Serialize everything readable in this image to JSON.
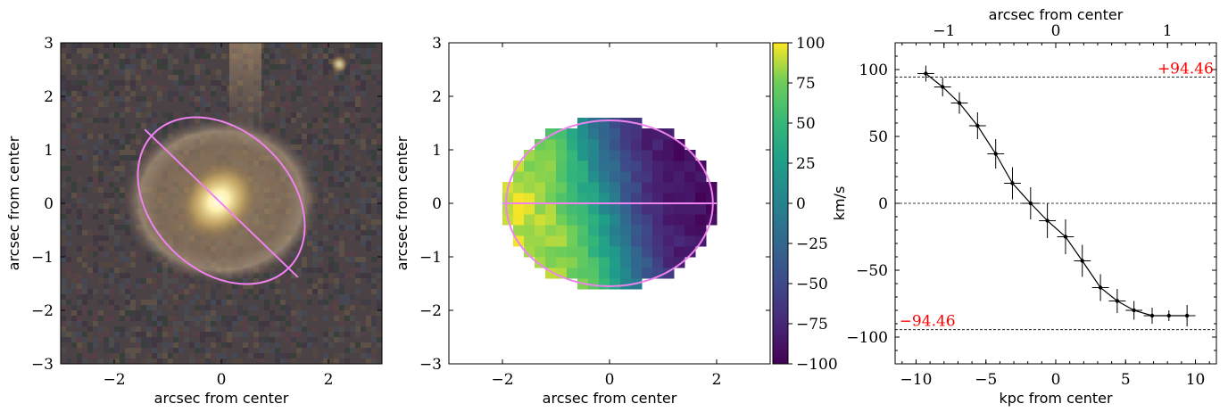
{
  "chart_data": [
    {
      "type": "image",
      "xlabel": "arcsec from center",
      "ylabel": "arcsec from center",
      "xlim": [
        -3,
        3
      ],
      "ylim": [
        -3,
        3
      ],
      "xticks": [
        -2,
        0,
        2
      ],
      "yticks": [
        -3,
        -2,
        -1,
        0,
        1,
        2,
        3
      ],
      "xtick_labels": [
        "−2",
        "0",
        "2"
      ],
      "ytick_labels": [
        "−3",
        "−2",
        "−1",
        "0",
        "1",
        "2",
        "3"
      ],
      "ellipse": {
        "center": [
          0,
          0.05
        ],
        "a": 1.78,
        "b": 1.3,
        "angle_deg": -45,
        "color": "#ee82ee"
      },
      "major_axis_line": {
        "from": [
          -1.43,
          1.38
        ],
        "to": [
          1.43,
          -1.38
        ],
        "color": "#ee82ee"
      }
    },
    {
      "type": "heatmap",
      "xlabel": "arcsec from center",
      "ylabel": "arcsec from center",
      "xlim": [
        -3,
        3
      ],
      "ylim": [
        -3,
        3
      ],
      "xticks": [
        -2,
        0,
        2
      ],
      "yticks": [
        -3,
        -2,
        -1,
        0,
        1,
        2,
        3
      ],
      "xtick_labels": [
        "−2",
        "0",
        "2"
      ],
      "ytick_labels": [
        "−3",
        "−2",
        "−1",
        "0",
        "1",
        "2",
        "3"
      ],
      "colorbar": {
        "label": "km/s",
        "range": [
          -100,
          100
        ],
        "ticks": [
          100,
          75,
          50,
          25,
          0,
          -25,
          -50,
          -75,
          -100
        ],
        "tick_labels": [
          "100",
          "75",
          "50",
          "25",
          "0",
          "−25",
          "−50",
          "−75",
          "−100"
        ],
        "colormap": "viridis"
      },
      "ellipse": {
        "center": [
          0,
          0
        ],
        "a": 1.93,
        "b": 1.55,
        "angle_deg": 0,
        "color": "#ee82ee"
      },
      "major_axis_line": {
        "from": [
          -2.0,
          0
        ],
        "to": [
          2.0,
          0
        ],
        "color": "#ee82ee"
      },
      "velocity_amplitude": 95
    },
    {
      "type": "line",
      "xlabel": "kpc from center",
      "top_xlabel": "arcsec from center",
      "xlim": [
        -11.5,
        11.5
      ],
      "ylim": [
        -120,
        120
      ],
      "xticks": [
        -10,
        -5,
        0,
        5,
        10
      ],
      "xtick_labels": [
        "−10",
        "−5",
        "0",
        "5",
        "10"
      ],
      "yticks": [
        -100,
        -50,
        0,
        50,
        100
      ],
      "ytick_labels": [
        "−100",
        "−50",
        "0",
        "50",
        "100"
      ],
      "top_xticks": [
        -1,
        0,
        1
      ],
      "top_xtick_labels": [
        "−1",
        "0",
        "1"
      ],
      "top_axis_kpc_per_arcsec": 8.0,
      "hlines": [
        94.46,
        0,
        -94.46
      ],
      "annotations": [
        {
          "text": "+94.46",
          "x": 11.3,
          "y": 94.46,
          "color": "#ff0000"
        },
        {
          "text": "−94.46",
          "x": -11.2,
          "y": -94.46,
          "color": "#ff0000"
        }
      ],
      "series": [
        {
          "x": [
            -9.3,
            -8.1,
            -6.9,
            -5.6,
            -4.3,
            -3.1,
            -1.8,
            -0.6,
            0.7,
            1.9,
            3.2,
            4.4,
            5.6,
            6.9,
            8.1,
            9.4
          ],
          "y": [
            97,
            87,
            75,
            58,
            37,
            15,
            0,
            -13,
            -25,
            -43,
            -63,
            -73,
            -80,
            -84,
            -84,
            -84
          ],
          "xerr": [
            0.6,
            0.6,
            0.6,
            0.6,
            0.6,
            0.6,
            0.6,
            0.6,
            0.6,
            0.6,
            0.6,
            0.6,
            0.6,
            0.6,
            0.6,
            0.6
          ],
          "yerr": [
            6,
            7,
            8,
            10,
            11,
            12,
            12,
            13,
            13,
            12,
            10,
            9,
            7,
            6,
            4,
            8
          ]
        }
      ]
    }
  ]
}
